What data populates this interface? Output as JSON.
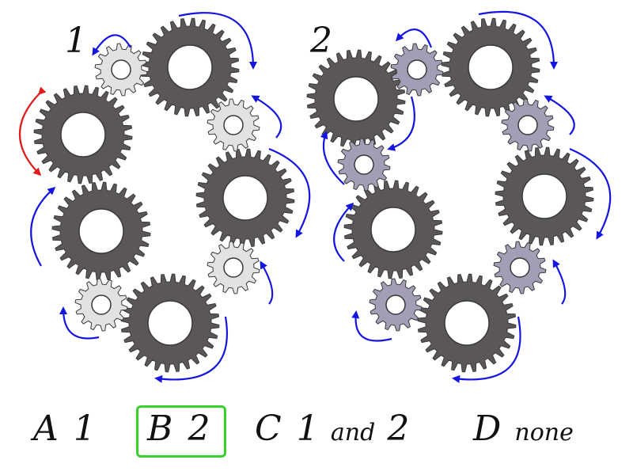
{
  "colors": {
    "big_gear": "#5a5756",
    "small_gear_panel1": "#e2e2e2",
    "small_gear_panel2": "#a49db6",
    "gear_outline": "#3a3a3a",
    "arrow_blue": "#1515e0",
    "arrow_red": "#e01a1a",
    "correct_border": "#39d12b"
  },
  "panels": [
    {
      "label": "1"
    },
    {
      "label": "2"
    }
  ],
  "answers": {
    "a": {
      "letter": "A",
      "value": "1"
    },
    "b": {
      "letter": "B",
      "value": "2",
      "is_correct": true
    },
    "c": {
      "letter": "C",
      "value_1": "1",
      "conjunction": "and",
      "value_2": "2"
    },
    "d": {
      "letter": "D",
      "value": "none"
    }
  }
}
